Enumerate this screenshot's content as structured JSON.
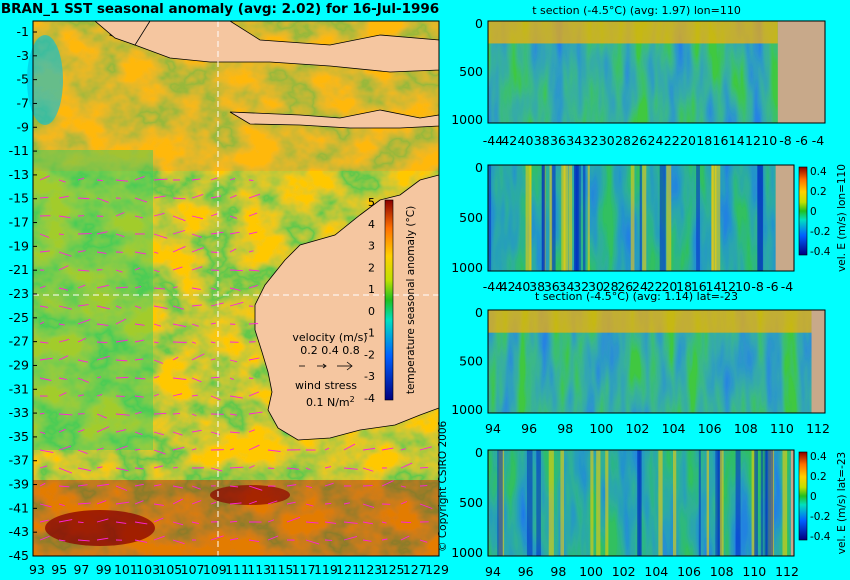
{
  "main_title": "BRAN_1  SST seasonal anomaly  (avg: 2.02)  for 16-Jul-1996",
  "copyright": "© Copyright CSIRO 2006",
  "colors": {
    "background": "#00ffff",
    "land": "#f5c6a0",
    "land_section": "#c8a98a",
    "vector": "#ff22dd"
  },
  "map": {
    "lat_labels": [
      "-1",
      "-3",
      "-5",
      "-7",
      "-9",
      "-11",
      "-13",
      "-15",
      "-17",
      "-19",
      "-21",
      "-23",
      "-25",
      "-27",
      "-29",
      "-31",
      "-33",
      "-35",
      "-37",
      "-39",
      "-41",
      "-43",
      "-45"
    ],
    "lon_labels": [
      "93",
      "95",
      "97",
      "99",
      "101",
      "103",
      "105",
      "107",
      "109",
      "111",
      "113",
      "115",
      "117",
      "119",
      "121",
      "123",
      "125",
      "127",
      "129"
    ],
    "crosshair": {
      "lat": -23,
      "lon": 110
    }
  },
  "legend": {
    "velocity_title": "velocity (m/s)",
    "velocity_values": "0.2 0.4 0.8",
    "wind_title": "wind stress",
    "wind_value": "0.1 N/m",
    "wind_sup": "2"
  },
  "chart_data": [
    {
      "type": "heatmap",
      "title": "BRAN_1  SST seasonal anomaly  (avg: 2.02)  for 16-Jul-1996",
      "colorbar": {
        "label": "temperature seasonal anomaly (°C)",
        "ticks": [
          5,
          4,
          3,
          2,
          1,
          0,
          -1,
          -2,
          -3,
          -4
        ],
        "range": [
          -4,
          5
        ]
      },
      "y_ticks": [
        -1,
        -3,
        -5,
        -7,
        -9,
        -11,
        -13,
        -15,
        -17,
        -19,
        -21,
        -23,
        -25,
        -27,
        -29,
        -31,
        -33,
        -35,
        -37,
        -39,
        -41,
        -43,
        -45
      ],
      "x_ticks": [
        93,
        95,
        97,
        99,
        101,
        103,
        105,
        107,
        109,
        111,
        113,
        115,
        117,
        119,
        121,
        123,
        125,
        127,
        129
      ]
    },
    {
      "type": "heatmap",
      "title": "t section (-4.5°C) (avg: 1.97) lon=110",
      "y_ticks": [
        0,
        500,
        1000
      ],
      "x_ticks": [
        "-44",
        "42",
        "40",
        "38",
        "36",
        "34",
        "32",
        "30",
        "28",
        "26",
        "24",
        "22",
        "20",
        "18",
        "16",
        "14",
        "12",
        "10",
        "-8",
        "-6",
        "-4"
      ]
    },
    {
      "type": "heatmap",
      "title": "",
      "colorbar": {
        "label": "vel. E (m/s) lon=110",
        "ticks": [
          "0.4",
          "0.2",
          "0",
          "-0.2",
          "-0.4"
        ]
      },
      "y_ticks": [
        0,
        500,
        1000
      ],
      "x_ticks": [
        "-44",
        "42",
        "40",
        "38",
        "36",
        "34",
        "32",
        "30",
        "28",
        "26",
        "24",
        "22",
        "20",
        "18",
        "16",
        "14",
        "12",
        "10",
        "-8",
        "-6",
        "-4"
      ]
    },
    {
      "type": "heatmap",
      "title": "t section (-4.5°C) (avg: 1.14) lat=-23",
      "y_ticks": [
        0,
        500,
        1000
      ],
      "x_ticks": [
        94,
        96,
        98,
        100,
        102,
        104,
        106,
        108,
        110,
        112
      ]
    },
    {
      "type": "heatmap",
      "title": "",
      "colorbar": {
        "label": "vel. E (m/s) lat=-23",
        "ticks": [
          "0.4",
          "0.2",
          "0",
          "-0.2",
          "-0.4"
        ]
      },
      "y_ticks": [
        0,
        500,
        1000
      ],
      "x_ticks": [
        94,
        96,
        98,
        100,
        102,
        104,
        106,
        108,
        110,
        112
      ]
    }
  ]
}
